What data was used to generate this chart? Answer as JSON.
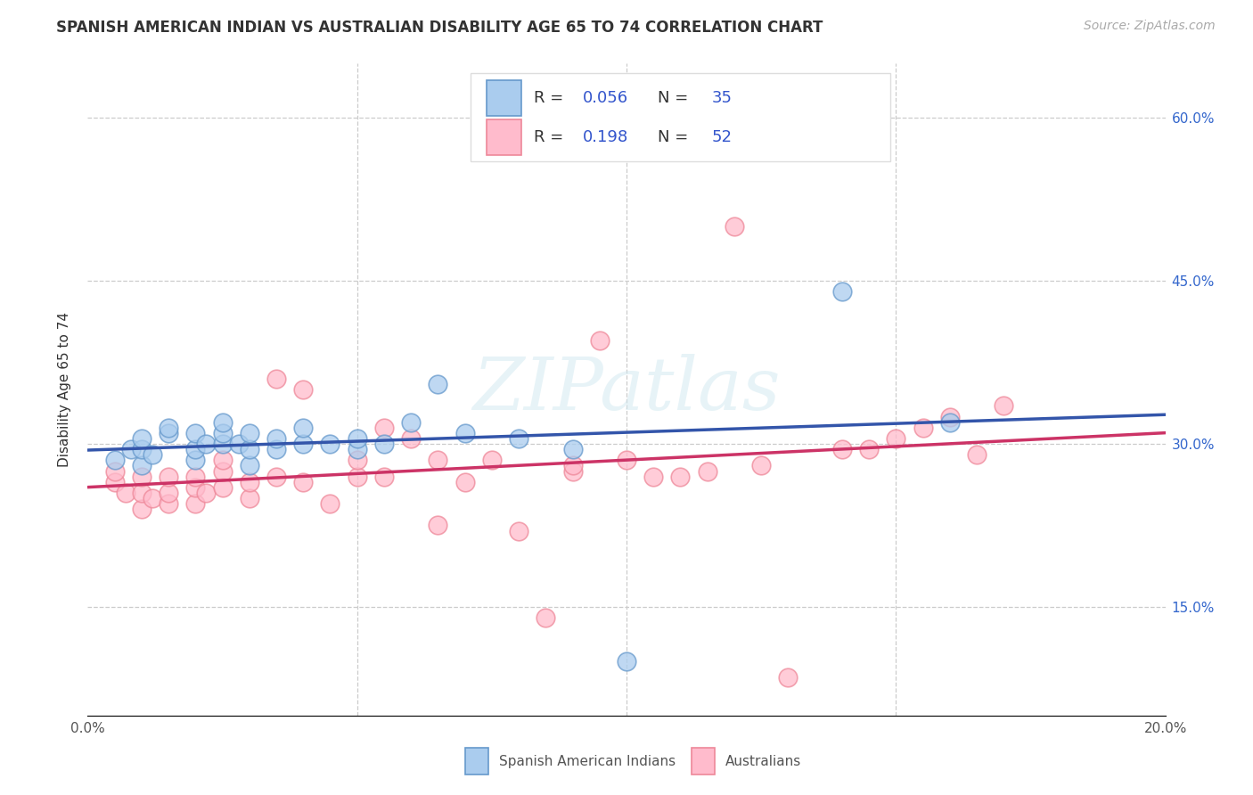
{
  "title": "SPANISH AMERICAN INDIAN VS AUSTRALIAN DISABILITY AGE 65 TO 74 CORRELATION CHART",
  "source": "Source: ZipAtlas.com",
  "ylabel": "Disability Age 65 to 74",
  "xlim": [
    0.0,
    0.2
  ],
  "ylim": [
    0.05,
    0.65
  ],
  "background_color": "#ffffff",
  "grid_color": "#cccccc",
  "blue_R": 0.056,
  "blue_N": 35,
  "pink_R": 0.198,
  "pink_N": 52,
  "blue_color_face": "#aaccee",
  "blue_color_edge": "#6699cc",
  "pink_color_face": "#ffbbcc",
  "pink_color_edge": "#ee8899",
  "blue_line_color": "#3355aa",
  "pink_line_color": "#cc3366",
  "blue_x": [
    0.005,
    0.008,
    0.01,
    0.01,
    0.01,
    0.012,
    0.015,
    0.015,
    0.02,
    0.02,
    0.02,
    0.022,
    0.025,
    0.025,
    0.025,
    0.028,
    0.03,
    0.03,
    0.03,
    0.035,
    0.035,
    0.04,
    0.04,
    0.045,
    0.05,
    0.05,
    0.055,
    0.06,
    0.065,
    0.07,
    0.08,
    0.09,
    0.1,
    0.14,
    0.16
  ],
  "blue_y": [
    0.285,
    0.295,
    0.28,
    0.295,
    0.305,
    0.29,
    0.31,
    0.315,
    0.285,
    0.295,
    0.31,
    0.3,
    0.3,
    0.31,
    0.32,
    0.3,
    0.28,
    0.295,
    0.31,
    0.295,
    0.305,
    0.3,
    0.315,
    0.3,
    0.295,
    0.305,
    0.3,
    0.32,
    0.355,
    0.31,
    0.305,
    0.295,
    0.1,
    0.44,
    0.32
  ],
  "pink_x": [
    0.005,
    0.005,
    0.007,
    0.01,
    0.01,
    0.01,
    0.012,
    0.015,
    0.015,
    0.015,
    0.02,
    0.02,
    0.02,
    0.022,
    0.025,
    0.025,
    0.025,
    0.03,
    0.03,
    0.035,
    0.035,
    0.04,
    0.04,
    0.045,
    0.05,
    0.05,
    0.055,
    0.055,
    0.06,
    0.065,
    0.065,
    0.07,
    0.075,
    0.08,
    0.085,
    0.09,
    0.09,
    0.095,
    0.1,
    0.105,
    0.11,
    0.115,
    0.12,
    0.125,
    0.13,
    0.14,
    0.145,
    0.15,
    0.155,
    0.16,
    0.165,
    0.17
  ],
  "pink_y": [
    0.265,
    0.275,
    0.255,
    0.24,
    0.255,
    0.27,
    0.25,
    0.245,
    0.255,
    0.27,
    0.245,
    0.26,
    0.27,
    0.255,
    0.26,
    0.275,
    0.285,
    0.25,
    0.265,
    0.36,
    0.27,
    0.265,
    0.35,
    0.245,
    0.27,
    0.285,
    0.315,
    0.27,
    0.305,
    0.225,
    0.285,
    0.265,
    0.285,
    0.22,
    0.14,
    0.275,
    0.28,
    0.395,
    0.285,
    0.27,
    0.27,
    0.275,
    0.5,
    0.28,
    0.085,
    0.295,
    0.295,
    0.305,
    0.315,
    0.325,
    0.29,
    0.335
  ],
  "legend_blue_label": "Spanish American Indians",
  "legend_pink_label": "Australians",
  "ytick_values": [
    0.15,
    0.3,
    0.45,
    0.6
  ],
  "ytick_labels": [
    "15.0%",
    "30.0%",
    "45.0%",
    "60.0%"
  ],
  "xtick_values": [
    0.0,
    0.05,
    0.1,
    0.15,
    0.2
  ],
  "xtick_labels": [
    "0.0%",
    "",
    "",
    "",
    "20.0%"
  ],
  "title_fontsize": 12,
  "tick_fontsize": 11,
  "legend_fontsize": 13,
  "source_fontsize": 10
}
